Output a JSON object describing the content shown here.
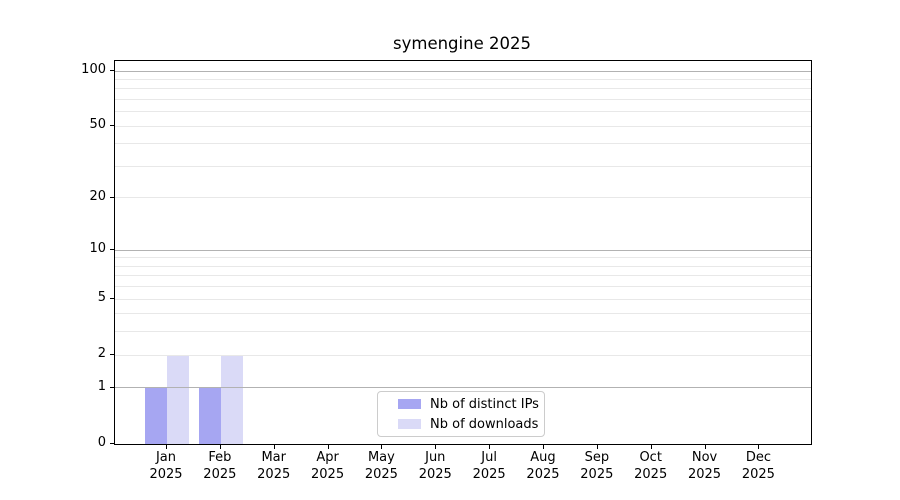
{
  "chart_data": {
    "type": "bar",
    "title": "symengine 2025",
    "categories": [
      {
        "month": "Jan",
        "year": "2025"
      },
      {
        "month": "Feb",
        "year": "2025"
      },
      {
        "month": "Mar",
        "year": "2025"
      },
      {
        "month": "Apr",
        "year": "2025"
      },
      {
        "month": "May",
        "year": "2025"
      },
      {
        "month": "Jun",
        "year": "2025"
      },
      {
        "month": "Jul",
        "year": "2025"
      },
      {
        "month": "Aug",
        "year": "2025"
      },
      {
        "month": "Sep",
        "year": "2025"
      },
      {
        "month": "Oct",
        "year": "2025"
      },
      {
        "month": "Nov",
        "year": "2025"
      },
      {
        "month": "Dec",
        "year": "2025"
      }
    ],
    "series": [
      {
        "name": "Nb of distinct IPs",
        "color": "#a6a6f2",
        "values": [
          1,
          1,
          0,
          0,
          0,
          0,
          0,
          0,
          0,
          0,
          0,
          0
        ]
      },
      {
        "name": "Nb of downloads",
        "color": "#dadaf7",
        "values": [
          2,
          2,
          0,
          0,
          0,
          0,
          0,
          0,
          0,
          0,
          0,
          0
        ]
      }
    ],
    "y_axis": {
      "scale": "log1p",
      "tick_values": [
        0,
        1,
        2,
        5,
        10,
        20,
        50,
        100
      ],
      "major_gridline_values": [
        1,
        10,
        100
      ],
      "minor_gridline_values": [
        2,
        3,
        4,
        5,
        6,
        7,
        8,
        9,
        20,
        30,
        40,
        50,
        60,
        70,
        80,
        90
      ]
    },
    "xlabel": "",
    "ylabel": "",
    "legend_position": "lower center",
    "grid": "horizontal"
  },
  "colors": {
    "bar_distinct_ips": "#a6a6f2",
    "bar_downloads": "#dadaf7",
    "grid_major": "#b2b2b2",
    "grid_minor": "#e8e8e8",
    "spine": "#000000",
    "legend_border": "#cccccc",
    "background": "#ffffff"
  }
}
